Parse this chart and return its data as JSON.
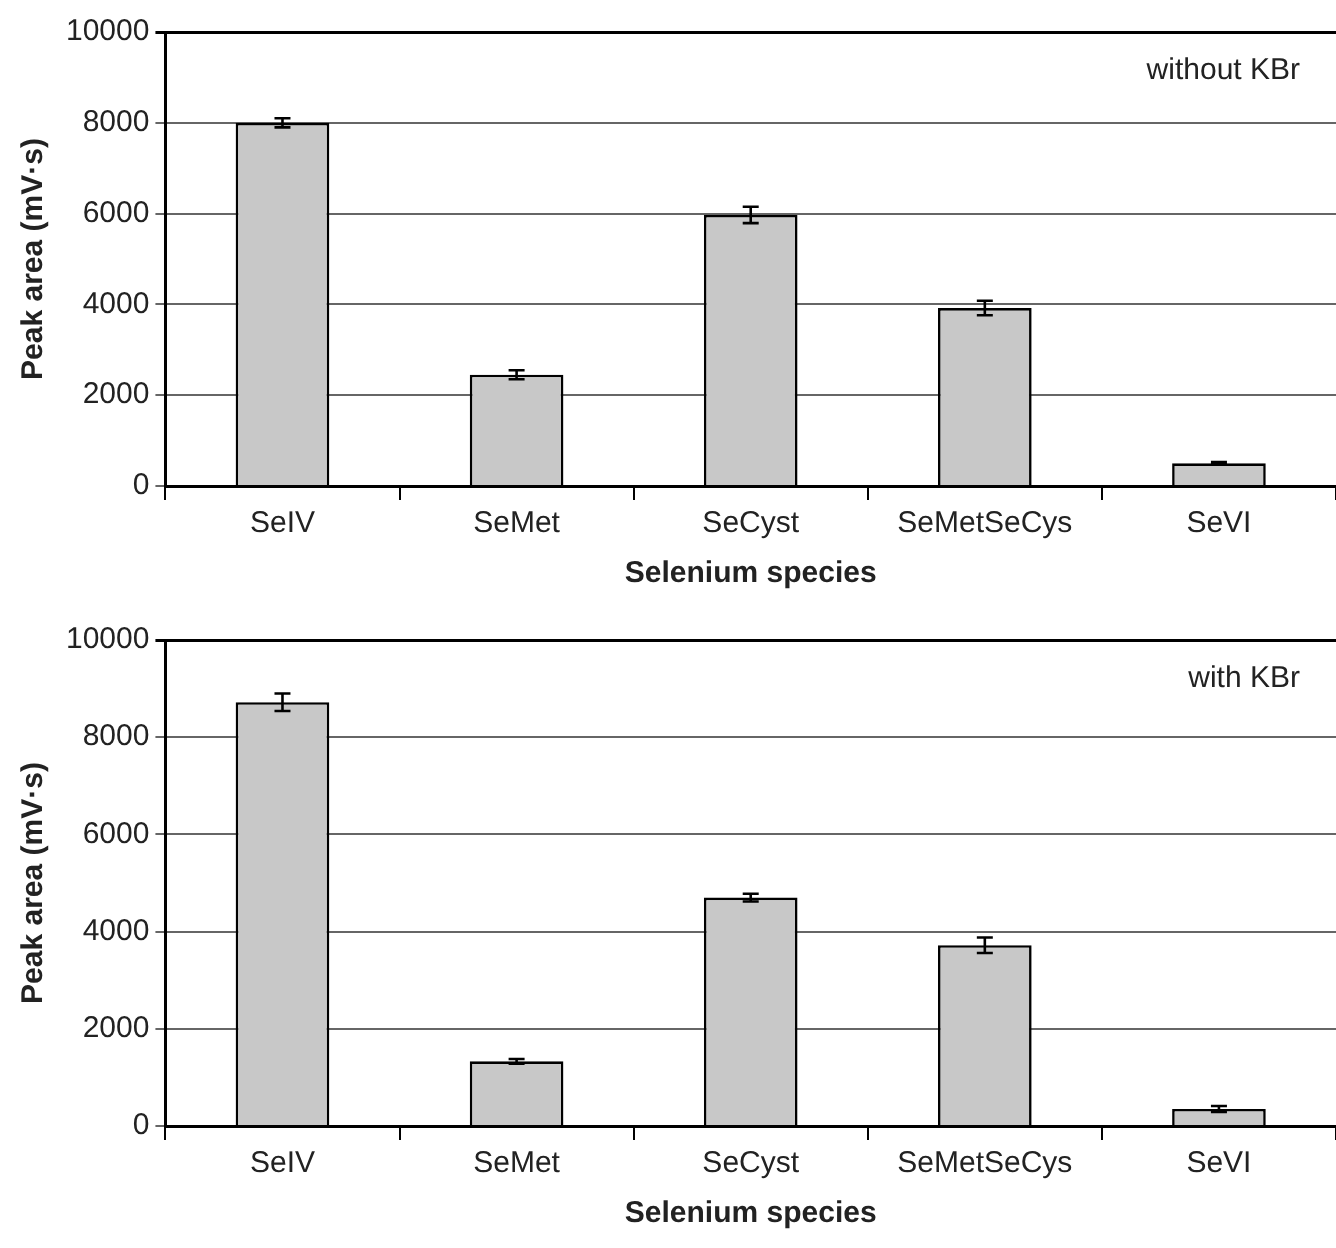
{
  "chart_data": [
    {
      "type": "bar",
      "categories": [
        "SeIV",
        "SeMet",
        "SeCyst",
        "SeMetSeCys",
        "SeVI"
      ],
      "values": [
        8000,
        2450,
        5970,
        3920,
        500
      ],
      "errors": [
        100,
        100,
        180,
        160,
        30
      ],
      "color": "#c8c8c8",
      "xlabel": "Selenium species",
      "ylabel": "Peak area (mV·s)",
      "ylim": [
        0,
        10000
      ],
      "yticks": [
        0,
        2000,
        4000,
        6000,
        8000,
        10000
      ],
      "grid": "y",
      "annotations": [
        "without KBr"
      ]
    },
    {
      "type": "bar",
      "categories": [
        "SeIV",
        "SeMet",
        "SeCyst",
        "SeMetSeCys",
        "SeVI"
      ],
      "values": [
        8720,
        1330,
        4700,
        3720,
        350
      ],
      "errors": [
        180,
        50,
        80,
        160,
        60
      ],
      "color": "#c8c8c8",
      "xlabel": "Selenium species",
      "ylabel": "Peak area (mV·s)",
      "ylim": [
        0,
        10000
      ],
      "yticks": [
        0,
        2000,
        4000,
        6000,
        8000,
        10000
      ],
      "grid": "y",
      "annotations": [
        "with KBr"
      ]
    }
  ]
}
